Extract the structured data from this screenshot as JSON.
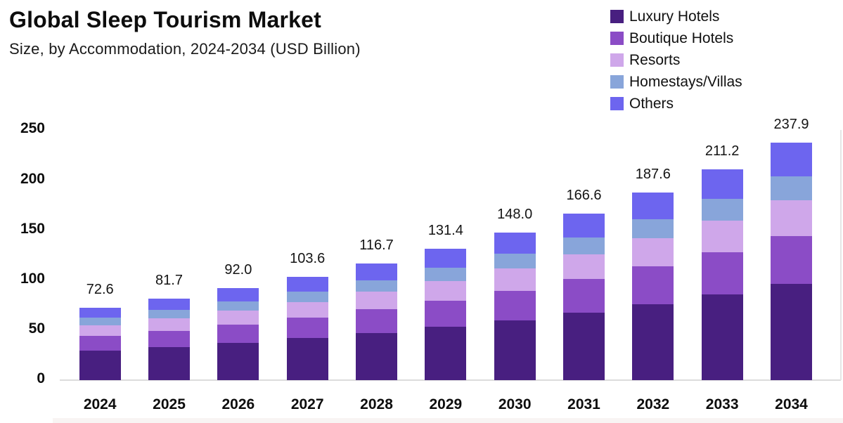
{
  "header": {
    "title": "Global Sleep Tourism Market",
    "subtitle": "Size, by Accommodation, 2024-2034 (USD Billion)"
  },
  "chart_data": {
    "type": "bar",
    "stacked": true,
    "title": "Global Sleep Tourism Market",
    "subtitle": "Size, by Accommodation, 2024-2034 (USD Billion)",
    "unit": "USD Billion",
    "categories": [
      "2024",
      "2025",
      "2026",
      "2027",
      "2028",
      "2029",
      "2030",
      "2031",
      "2032",
      "2033",
      "2034"
    ],
    "totals": [
      72.6,
      81.7,
      92.0,
      103.6,
      116.7,
      131.4,
      148.0,
      166.6,
      187.6,
      211.2,
      237.9
    ],
    "total_labels": [
      "72.6",
      "81.7",
      "92.0",
      "103.6",
      "116.7",
      "131.4",
      "148.0",
      "166.6",
      "187.6",
      "211.2",
      "237.9"
    ],
    "series": [
      {
        "name": "Luxury Hotels",
        "color": "#481f80",
        "values": [
          29.4,
          33.1,
          37.3,
          42.0,
          47.3,
          53.2,
          59.9,
          67.5,
          76.0,
          85.5,
          96.3
        ]
      },
      {
        "name": "Boutique Hotels",
        "color": "#8b4cc6",
        "values": [
          14.6,
          16.4,
          18.5,
          20.8,
          23.5,
          26.4,
          29.7,
          33.5,
          37.7,
          42.5,
          47.8
        ]
      },
      {
        "name": "Resorts",
        "color": "#cfa7ea",
        "values": [
          10.9,
          12.3,
          13.8,
          15.5,
          17.5,
          19.7,
          22.2,
          25.0,
          28.1,
          31.7,
          35.7
        ]
      },
      {
        "name": "Homestays/Villas",
        "color": "#88a5da",
        "values": [
          7.4,
          8.3,
          9.4,
          10.6,
          11.9,
          13.4,
          15.1,
          17.0,
          19.1,
          21.5,
          24.3
        ]
      },
      {
        "name": "Others",
        "color": "#6d65ef",
        "values": [
          10.3,
          11.6,
          13.0,
          14.7,
          16.5,
          18.7,
          21.1,
          23.6,
          26.7,
          30.0,
          33.8
        ]
      }
    ],
    "xlabel": "",
    "ylabel": "",
    "y_ticks": [
      0,
      50,
      100,
      150,
      200,
      250
    ],
    "ylim": [
      0,
      250
    ],
    "grid": false,
    "legend_position": "top-right",
    "colors": {
      "text": "#0d0d0d",
      "axis_line": "#dcdcdc",
      "plot_right_border": "#e6e6e6"
    }
  }
}
